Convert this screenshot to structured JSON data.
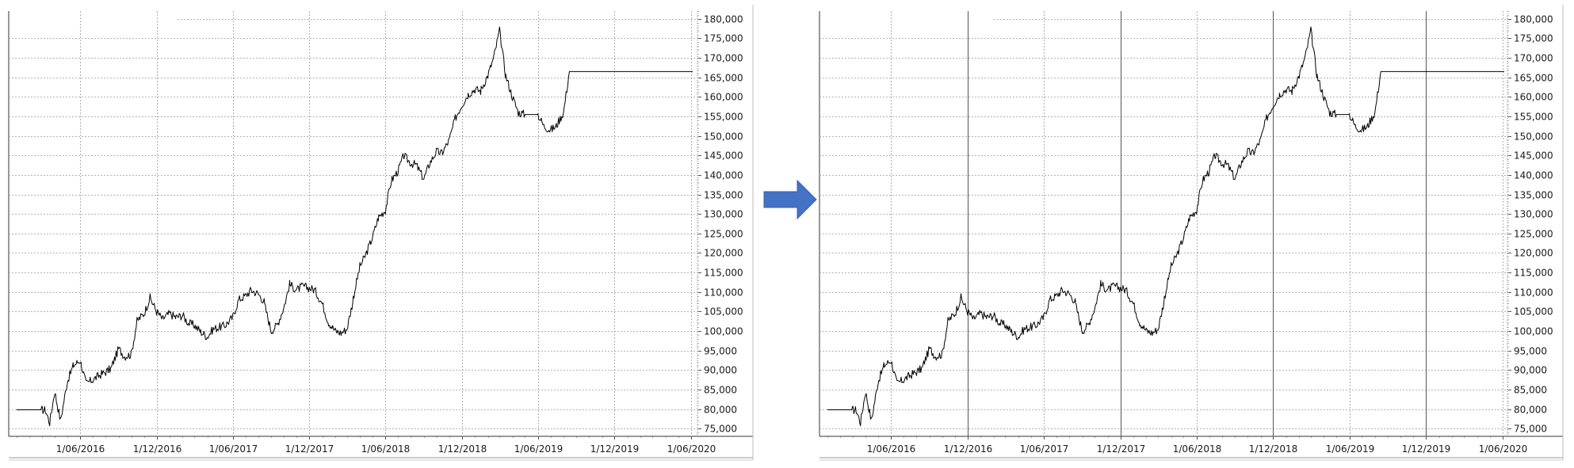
{
  "chart_data": [
    {
      "type": "line",
      "title": "",
      "xlabel": "",
      "ylabel": "",
      "ylim": [
        73000,
        182000
      ],
      "y_ticks": [
        75000,
        80000,
        85000,
        90000,
        95000,
        100000,
        105000,
        110000,
        115000,
        120000,
        125000,
        130000,
        135000,
        140000,
        145000,
        150000,
        155000,
        160000,
        165000,
        170000,
        175000,
        180000
      ],
      "y_tick_labels": [
        "75,000",
        "80,000",
        "85,000",
        "90,000",
        "95,000",
        "100,000",
        "105,000",
        "110,000",
        "115,000",
        "120,000",
        "125,000",
        "130,000",
        "135,000",
        "140,000",
        "145,000",
        "150,000",
        "155,000",
        "160,000",
        "165,000",
        "170,000",
        "175,000",
        "180,000"
      ],
      "x_tick_labels": [
        "1/06/2016",
        "1/12/2016",
        "1/06/2017",
        "1/12/2017",
        "1/06/2018",
        "1/12/2018",
        "1/06/2019",
        "1/12/2019",
        "1/06/2020"
      ],
      "grid": true,
      "vertical_month_lines": false,
      "series": [
        {
          "color": "#000000",
          "x": [
            "2016-01-01",
            "2016-03-01",
            "2016-03-10",
            "2016-03-20",
            "2016-04-01",
            "2016-04-15",
            "2016-05-01",
            "2016-05-15",
            "2016-06-01",
            "2016-06-15",
            "2016-07-01",
            "2016-07-15",
            "2016-08-01",
            "2016-08-15",
            "2016-09-01",
            "2016-09-15",
            "2016-10-01",
            "2016-10-15",
            "2016-11-01",
            "2016-11-15",
            "2016-12-01",
            "2016-12-15",
            "2017-01-01",
            "2017-01-15",
            "2017-02-01",
            "2017-02-15",
            "2017-03-01",
            "2017-03-15",
            "2017-04-01",
            "2017-04-15",
            "2017-05-01",
            "2017-05-15",
            "2017-06-01",
            "2017-06-15",
            "2017-07-01",
            "2017-07-15",
            "2017-08-01",
            "2017-08-15",
            "2017-09-01",
            "2017-09-15",
            "2017-10-01",
            "2017-10-15",
            "2017-11-01",
            "2017-11-15",
            "2017-12-01",
            "2017-12-15",
            "2018-01-01",
            "2018-01-15",
            "2018-02-01",
            "2018-02-15",
            "2018-03-01",
            "2018-03-15",
            "2018-04-01",
            "2018-04-15",
            "2018-05-01",
            "2018-05-15",
            "2018-06-01",
            "2018-06-15",
            "2018-07-01",
            "2018-07-15",
            "2018-08-01",
            "2018-08-15",
            "2018-09-01",
            "2018-09-15",
            "2018-10-01",
            "2018-10-15",
            "2018-11-01",
            "2018-11-15",
            "2018-12-01",
            "2018-12-15",
            "2019-01-01",
            "2019-01-15",
            "2019-02-01",
            "2019-02-15",
            "2019-03-01",
            "2019-03-15",
            "2019-04-01",
            "2019-04-15",
            "2019-05-01",
            "2019-05-15",
            "2019-06-01",
            "2019-06-15",
            "2019-07-01",
            "2019-07-15",
            "2019-08-01",
            "2019-08-15",
            "2019-09-01",
            "2019-09-15",
            "2019-10-01",
            "2019-10-15",
            "2019-11-01",
            "2019-11-15",
            "2019-12-01",
            "2019-12-15",
            "2020-01-01",
            "2020-01-15",
            "2020-02-01",
            "2020-02-15",
            "2020-02-25",
            "2020-03-05",
            "2020-03-15",
            "2020-03-25",
            "2020-04-05",
            "2020-04-15",
            "2020-04-25",
            "2020-05-05",
            "2020-05-10",
            "2020-05-15",
            "2020-05-20",
            "2020-06-01",
            "2020-06-05"
          ],
          "values": [
            79800,
            79800,
            79700,
            76500,
            84500,
            77000,
            87000,
            91000,
            92500,
            86500,
            87500,
            88500,
            89500,
            90500,
            95500,
            93500,
            94000,
            102500,
            104500,
            108500,
            105000,
            103000,
            104500,
            103500,
            104000,
            102000,
            101500,
            100000,
            98500,
            100500,
            101000,
            101500,
            103500,
            108000,
            109000,
            110500,
            109500,
            107500,
            100000,
            101500,
            106000,
            112000,
            110500,
            111500,
            111000,
            110500,
            107000,
            102500,
            100000,
            99500,
            100500,
            107500,
            116500,
            119500,
            124000,
            129000,
            131000,
            138500,
            141000,
            145000,
            143000,
            142500,
            139000,
            143000,
            146000,
            145500,
            149000,
            154500,
            158000,
            160500,
            162000,
            161500,
            165500,
            170000,
            177000,
            166000,
            160000,
            156000,
            155500,
            155500,
            155500,
            152500,
            151500,
            152500,
            156000,
            166500,
            166500,
            166500,
            166500,
            166500,
            166500,
            166500,
            166500,
            166500,
            166500,
            166500,
            166500,
            166500,
            166500,
            166500,
            166500,
            166500,
            166500,
            166500,
            166500,
            166500,
            166500,
            166500,
            166500,
            166500,
            166500
          ]
        }
      ]
    },
    {
      "type": "line",
      "title": "",
      "xlabel": "",
      "ylabel": "",
      "ylim": [
        73000,
        182000
      ],
      "y_ticks": [
        75000,
        80000,
        85000,
        90000,
        95000,
        100000,
        105000,
        110000,
        115000,
        120000,
        125000,
        130000,
        135000,
        140000,
        145000,
        150000,
        155000,
        160000,
        165000,
        170000,
        175000,
        180000
      ],
      "y_tick_labels": [
        "75,000",
        "80,000",
        "85,000",
        "90,000",
        "95,000",
        "100,000",
        "105,000",
        "110,000",
        "115,000",
        "120,000",
        "125,000",
        "130,000",
        "135,000",
        "140,000",
        "145,000",
        "150,000",
        "155,000",
        "160,000",
        "165,000",
        "170,000",
        "175,000",
        "180,000"
      ],
      "x_tick_labels": [
        "1/06/2016",
        "1/12/2016",
        "1/06/2017",
        "1/12/2017",
        "1/06/2018",
        "1/12/2018",
        "1/06/2019",
        "1/12/2019",
        "1/06/2020"
      ],
      "grid": true,
      "vertical_month_lines": true,
      "series": [
        {
          "color": "#000000",
          "x": [
            "2016-01-01",
            "2016-03-01",
            "2016-03-10",
            "2016-03-20",
            "2016-04-01",
            "2016-04-15",
            "2016-05-01",
            "2016-05-15",
            "2016-06-01",
            "2016-06-15",
            "2016-07-01",
            "2016-07-15",
            "2016-08-01",
            "2016-08-15",
            "2016-09-01",
            "2016-09-15",
            "2016-10-01",
            "2016-10-15",
            "2016-11-01",
            "2016-11-15",
            "2016-12-01",
            "2016-12-15",
            "2017-01-01",
            "2017-01-15",
            "2017-02-01",
            "2017-02-15",
            "2017-03-01",
            "2017-03-15",
            "2017-04-01",
            "2017-04-15",
            "2017-05-01",
            "2017-05-15",
            "2017-06-01",
            "2017-06-15",
            "2017-07-01",
            "2017-07-15",
            "2017-08-01",
            "2017-08-15",
            "2017-09-01",
            "2017-09-15",
            "2017-10-01",
            "2017-10-15",
            "2017-11-01",
            "2017-11-15",
            "2017-12-01",
            "2017-12-15",
            "2018-01-01",
            "2018-01-15",
            "2018-02-01",
            "2018-02-15",
            "2018-03-01",
            "2018-03-15",
            "2018-04-01",
            "2018-04-15",
            "2018-05-01",
            "2018-05-15",
            "2018-06-01",
            "2018-06-15",
            "2018-07-01",
            "2018-07-15",
            "2018-08-01",
            "2018-08-15",
            "2018-09-01",
            "2018-09-15",
            "2018-10-01",
            "2018-10-15",
            "2018-11-01",
            "2018-11-15",
            "2018-12-01",
            "2018-12-15",
            "2019-01-01",
            "2019-01-15",
            "2019-02-01",
            "2019-02-15",
            "2019-03-01",
            "2019-03-15",
            "2019-04-01",
            "2019-04-15",
            "2019-05-01",
            "2019-05-15",
            "2019-06-01",
            "2019-06-15",
            "2019-07-01",
            "2019-07-15",
            "2019-08-01",
            "2019-08-15",
            "2019-09-01",
            "2019-09-15",
            "2019-10-01",
            "2019-10-15",
            "2019-11-01",
            "2019-11-15",
            "2019-12-01",
            "2019-12-15",
            "2020-01-01",
            "2020-01-15",
            "2020-02-01",
            "2020-02-15",
            "2020-02-25",
            "2020-03-05",
            "2020-03-15",
            "2020-03-25",
            "2020-04-05",
            "2020-04-15",
            "2020-04-25",
            "2020-05-05",
            "2020-05-10",
            "2020-05-15",
            "2020-05-20",
            "2020-06-01",
            "2020-06-05"
          ],
          "values": [
            79800,
            79800,
            79700,
            76500,
            84500,
            77000,
            87000,
            91000,
            92500,
            86500,
            87500,
            88500,
            89500,
            90500,
            95500,
            93500,
            94000,
            102500,
            104500,
            108500,
            105000,
            103000,
            104500,
            103500,
            104000,
            102000,
            101500,
            100000,
            98500,
            100500,
            101000,
            101500,
            103500,
            108000,
            109000,
            110500,
            109500,
            107500,
            100000,
            101500,
            106000,
            112000,
            110500,
            111500,
            111000,
            110500,
            107000,
            102500,
            100000,
            99500,
            100500,
            107500,
            116500,
            119500,
            124000,
            129000,
            131000,
            138500,
            141000,
            145000,
            143000,
            142500,
            139000,
            143000,
            146000,
            145500,
            149000,
            154500,
            158000,
            160500,
            162000,
            161500,
            165500,
            170000,
            177000,
            166000,
            160000,
            156000,
            155500,
            155500,
            155500,
            152500,
            151500,
            152500,
            156000,
            166500,
            166500,
            166500,
            166500,
            166500,
            166500,
            166500,
            166500,
            166500,
            166500,
            166500,
            166500,
            166500,
            166500,
            166500,
            166500,
            166500,
            166500,
            166500,
            166500,
            166500,
            166500,
            166500,
            166500,
            166500,
            166500
          ]
        }
      ]
    }
  ],
  "arrow": {
    "icon": "arrow-right-icon",
    "color": "#4472C4"
  }
}
